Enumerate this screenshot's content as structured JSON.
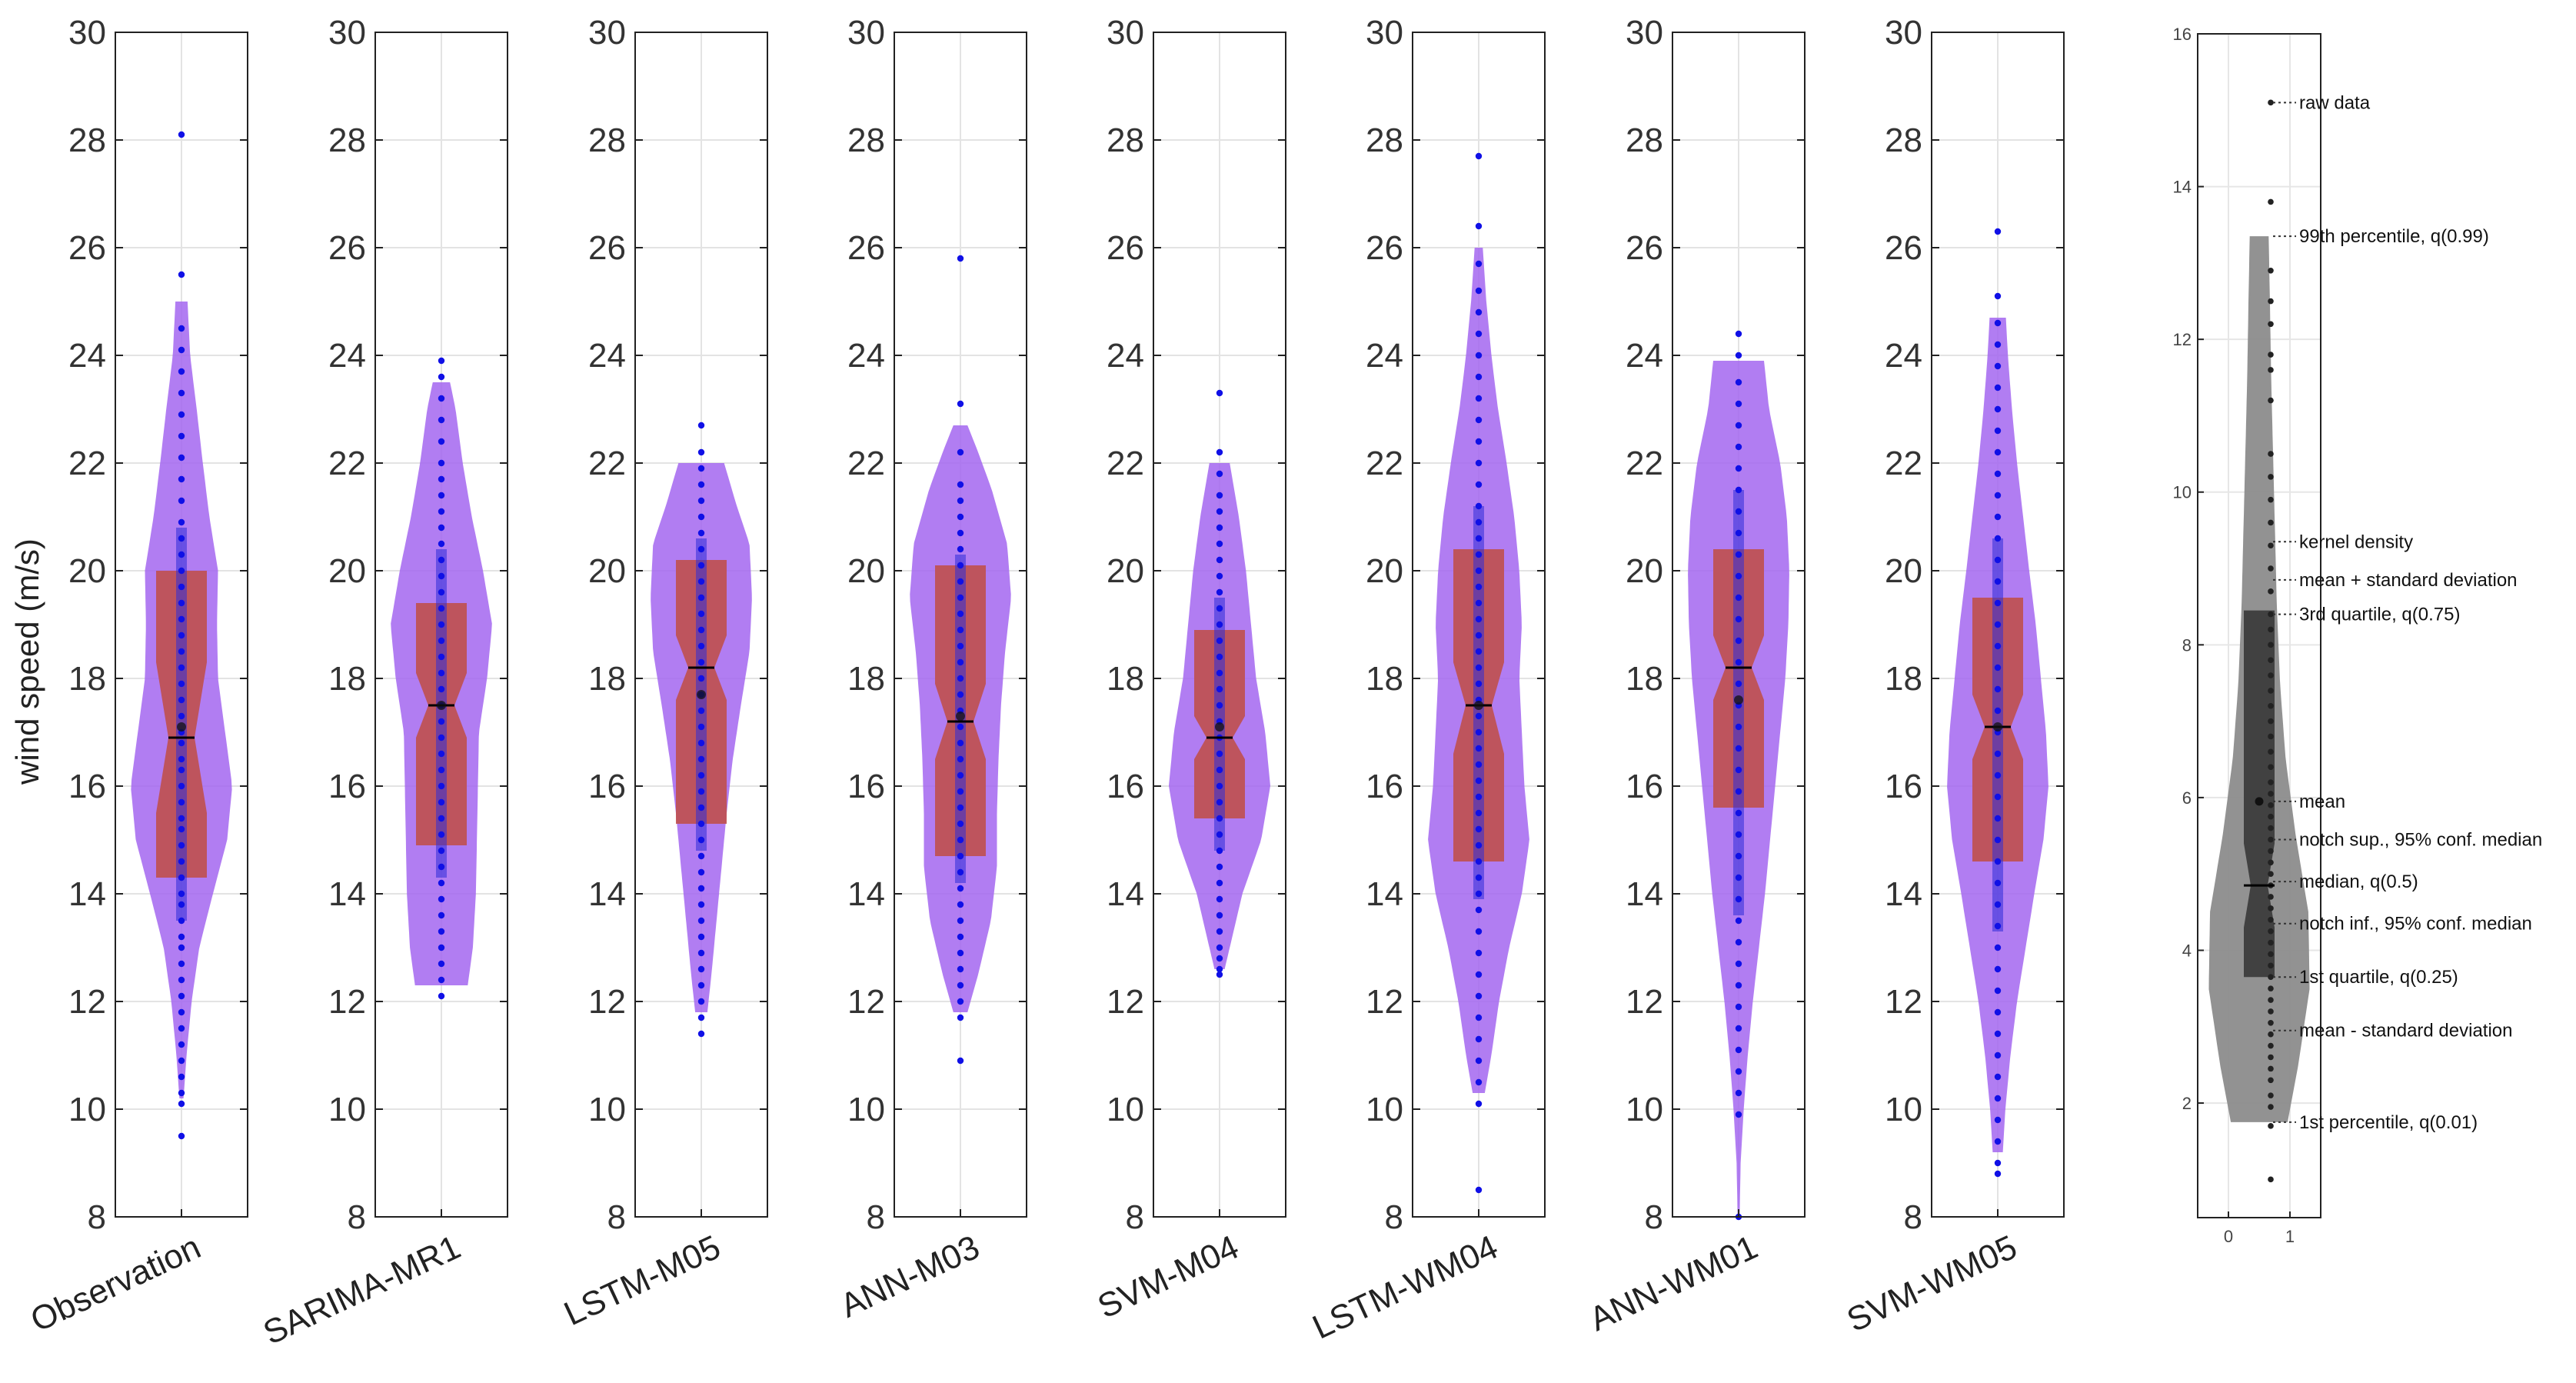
{
  "chart_data": {
    "type": "violin",
    "ylabel": "wind speed (m/s)",
    "ylim": [
      8,
      30
    ],
    "yticks": [
      8,
      10,
      12,
      14,
      16,
      18,
      20,
      22,
      24,
      26,
      28,
      30
    ],
    "grid": true,
    "colors": {
      "violin": "#a366f0",
      "box": "#c0504d",
      "points": "#1010e6",
      "median": "#000000"
    },
    "panels": [
      {
        "name": "Observation",
        "q1": 14.3,
        "median": 16.9,
        "q3": 20.0,
        "mean": 17.1,
        "notch_low": 15.5,
        "notch_high": 18.3,
        "p1": 10.2,
        "p99": 25.0,
        "whisker_low": 13.5,
        "whisker_high": 20.8,
        "points": [
          9.5,
          10.1,
          10.3,
          10.6,
          10.9,
          11.2,
          11.5,
          11.8,
          12.1,
          12.4,
          12.7,
          13.0,
          13.2,
          13.5,
          13.8,
          14.0,
          14.3,
          14.6,
          14.9,
          15.2,
          15.4,
          15.7,
          16.0,
          16.3,
          16.5,
          16.8,
          17.0,
          17.3,
          17.6,
          17.9,
          18.2,
          18.5,
          18.8,
          19.1,
          19.4,
          19.7,
          20.0,
          20.3,
          20.6,
          20.9,
          21.3,
          21.7,
          22.1,
          22.5,
          22.9,
          23.3,
          23.7,
          24.1,
          24.5,
          25.5,
          28.1
        ],
        "density": [
          [
            10.2,
            0.04
          ],
          [
            11,
            0.1
          ],
          [
            12,
            0.2
          ],
          [
            13,
            0.35
          ],
          [
            14,
            0.62
          ],
          [
            15,
            0.9
          ],
          [
            16,
            1.0
          ],
          [
            17,
            0.86
          ],
          [
            18,
            0.72
          ],
          [
            19,
            0.7
          ],
          [
            20,
            0.72
          ],
          [
            21,
            0.55
          ],
          [
            22,
            0.42
          ],
          [
            23,
            0.3
          ],
          [
            24,
            0.17
          ],
          [
            25,
            0.12
          ]
        ]
      },
      {
        "name": "SARIMA-MR1",
        "q1": 14.9,
        "median": 17.5,
        "q3": 19.4,
        "mean": 17.5,
        "notch_low": 16.9,
        "notch_high": 18.1,
        "p1": 12.3,
        "p99": 23.5,
        "whisker_low": 14.3,
        "whisker_high": 20.4,
        "points": [
          12.1,
          12.4,
          12.7,
          13.0,
          13.3,
          13.6,
          13.9,
          14.2,
          14.5,
          14.8,
          15.1,
          15.4,
          15.7,
          16.0,
          16.3,
          16.6,
          16.9,
          17.2,
          17.5,
          17.8,
          18.1,
          18.4,
          18.7,
          19.0,
          19.3,
          19.6,
          19.9,
          20.2,
          20.5,
          20.8,
          21.1,
          21.4,
          21.7,
          22.0,
          22.4,
          22.8,
          23.2,
          23.6,
          23.9
        ],
        "density": [
          [
            12.3,
            0.52
          ],
          [
            13,
            0.62
          ],
          [
            14,
            0.68
          ],
          [
            15,
            0.7
          ],
          [
            16,
            0.72
          ],
          [
            17,
            0.74
          ],
          [
            18,
            0.9
          ],
          [
            19,
            1.0
          ],
          [
            20,
            0.82
          ],
          [
            21,
            0.6
          ],
          [
            22,
            0.42
          ],
          [
            23,
            0.28
          ],
          [
            23.5,
            0.17
          ]
        ]
      },
      {
        "name": "LSTM-M05",
        "q1": 15.3,
        "median": 18.2,
        "q3": 20.2,
        "mean": 17.7,
        "notch_low": 17.6,
        "notch_high": 18.8,
        "p1": 11.8,
        "p99": 22.0,
        "whisker_low": 14.8,
        "whisker_high": 20.6,
        "points": [
          11.4,
          11.7,
          12.0,
          12.3,
          12.6,
          12.9,
          13.2,
          13.5,
          13.8,
          14.1,
          14.4,
          14.7,
          15.0,
          15.3,
          15.6,
          15.9,
          16.2,
          16.5,
          16.8,
          17.1,
          17.4,
          17.7,
          18.0,
          18.3,
          18.6,
          18.9,
          19.2,
          19.5,
          19.8,
          20.1,
          20.4,
          20.7,
          21.0,
          21.3,
          21.6,
          21.9,
          22.2,
          22.7
        ],
        "density": [
          [
            11.8,
            0.12
          ],
          [
            12.5,
            0.2
          ],
          [
            13.5,
            0.3
          ],
          [
            14.5,
            0.4
          ],
          [
            15.5,
            0.5
          ],
          [
            16.5,
            0.62
          ],
          [
            17.5,
            0.78
          ],
          [
            18.5,
            0.95
          ],
          [
            19.5,
            1.0
          ],
          [
            20.5,
            0.95
          ],
          [
            21.2,
            0.7
          ],
          [
            22,
            0.45
          ]
        ]
      },
      {
        "name": "ANN-M03",
        "q1": 14.7,
        "median": 17.2,
        "q3": 20.1,
        "mean": 17.3,
        "notch_low": 16.5,
        "notch_high": 17.9,
        "p1": 11.8,
        "p99": 22.7,
        "whisker_low": 14.2,
        "whisker_high": 20.3,
        "points": [
          10.9,
          11.7,
          12.0,
          12.3,
          12.6,
          12.9,
          13.2,
          13.5,
          13.8,
          14.1,
          14.4,
          14.7,
          15.0,
          15.3,
          15.6,
          15.9,
          16.2,
          16.5,
          16.8,
          17.1,
          17.4,
          17.7,
          18.0,
          18.3,
          18.6,
          18.9,
          19.2,
          19.5,
          19.8,
          20.1,
          20.4,
          20.7,
          21.0,
          21.3,
          21.6,
          22.2,
          23.1,
          25.8
        ],
        "density": [
          [
            11.8,
            0.14
          ],
          [
            12.5,
            0.35
          ],
          [
            13.5,
            0.6
          ],
          [
            14.5,
            0.72
          ],
          [
            15.5,
            0.72
          ],
          [
            16.5,
            0.75
          ],
          [
            17.5,
            0.8
          ],
          [
            18.5,
            0.88
          ],
          [
            19.5,
            1.0
          ],
          [
            20.5,
            0.92
          ],
          [
            21.5,
            0.62
          ],
          [
            22.2,
            0.35
          ],
          [
            22.7,
            0.14
          ]
        ]
      },
      {
        "name": "SVM-M04",
        "q1": 15.4,
        "median": 16.9,
        "q3": 18.9,
        "mean": 17.1,
        "notch_low": 16.5,
        "notch_high": 17.3,
        "p1": 12.6,
        "p99": 22.0,
        "whisker_low": 14.8,
        "whisker_high": 19.5,
        "points": [
          12.5,
          12.6,
          12.8,
          13.0,
          13.3,
          13.6,
          13.9,
          14.2,
          14.5,
          14.8,
          15.1,
          15.4,
          15.7,
          16.0,
          16.3,
          16.6,
          16.9,
          17.2,
          17.5,
          17.8,
          18.1,
          18.4,
          18.7,
          19.0,
          19.3,
          19.6,
          19.9,
          20.2,
          20.5,
          20.8,
          21.1,
          21.4,
          21.8,
          22.2,
          23.3
        ],
        "density": [
          [
            12.6,
            0.1
          ],
          [
            13,
            0.2
          ],
          [
            14,
            0.45
          ],
          [
            15,
            0.82
          ],
          [
            16,
            1.0
          ],
          [
            17,
            0.9
          ],
          [
            18,
            0.72
          ],
          [
            19,
            0.62
          ],
          [
            20,
            0.52
          ],
          [
            21,
            0.38
          ],
          [
            22,
            0.2
          ]
        ]
      },
      {
        "name": "LSTM-WM04",
        "q1": 14.6,
        "median": 17.5,
        "q3": 20.4,
        "mean": 17.5,
        "notch_low": 16.6,
        "notch_high": 18.3,
        "p1": 10.3,
        "p99": 26.0,
        "whisker_low": 13.9,
        "whisker_high": 21.2,
        "points": [
          8.5,
          10.1,
          10.5,
          10.9,
          11.3,
          11.7,
          12.1,
          12.5,
          12.9,
          13.3,
          13.7,
          14.0,
          14.3,
          14.6,
          14.9,
          15.2,
          15.5,
          15.8,
          16.1,
          16.4,
          16.7,
          17.0,
          17.3,
          17.6,
          17.9,
          18.2,
          18.5,
          18.8,
          19.1,
          19.4,
          19.7,
          20.0,
          20.3,
          20.6,
          20.9,
          21.2,
          21.6,
          22.0,
          22.4,
          22.8,
          23.2,
          23.6,
          24.0,
          24.4,
          24.8,
          25.2,
          25.7,
          26.4,
          27.7
        ],
        "density": [
          [
            10.3,
            0.12
          ],
          [
            11,
            0.25
          ],
          [
            12,
            0.4
          ],
          [
            13,
            0.6
          ],
          [
            14,
            0.85
          ],
          [
            15,
            1.0
          ],
          [
            16,
            0.9
          ],
          [
            17,
            0.85
          ],
          [
            18,
            0.8
          ],
          [
            19,
            0.85
          ],
          [
            20,
            0.8
          ],
          [
            21,
            0.7
          ],
          [
            22,
            0.55
          ],
          [
            23,
            0.38
          ],
          [
            24,
            0.25
          ],
          [
            25,
            0.15
          ],
          [
            26,
            0.08
          ]
        ]
      },
      {
        "name": "ANN-WM01",
        "q1": 15.6,
        "median": 18.2,
        "q3": 20.4,
        "mean": 17.6,
        "notch_low": 17.6,
        "notch_high": 18.8,
        "p1": 8.0,
        "p99": 23.9,
        "whisker_low": 13.6,
        "whisker_high": 21.5,
        "points": [
          8.0,
          9.9,
          10.3,
          10.7,
          11.1,
          11.5,
          11.9,
          12.3,
          12.7,
          13.1,
          13.5,
          13.9,
          14.3,
          14.7,
          15.1,
          15.5,
          15.9,
          16.3,
          16.7,
          17.1,
          17.5,
          17.9,
          18.3,
          18.7,
          19.1,
          19.5,
          19.9,
          20.3,
          20.7,
          21.1,
          21.5,
          21.9,
          22.3,
          22.7,
          23.1,
          23.5,
          24.0,
          24.4
        ],
        "density": [
          [
            8.0,
            0.02
          ],
          [
            9,
            0.04
          ],
          [
            10,
            0.1
          ],
          [
            11,
            0.18
          ],
          [
            12,
            0.28
          ],
          [
            13,
            0.4
          ],
          [
            14,
            0.52
          ],
          [
            15,
            0.62
          ],
          [
            16,
            0.72
          ],
          [
            17,
            0.82
          ],
          [
            18,
            0.92
          ],
          [
            19,
            0.98
          ],
          [
            20,
            1.0
          ],
          [
            21,
            0.95
          ],
          [
            22,
            0.82
          ],
          [
            23,
            0.6
          ],
          [
            23.9,
            0.5
          ]
        ]
      },
      {
        "name": "SVM-WM05",
        "q1": 14.6,
        "median": 17.1,
        "q3": 19.5,
        "mean": 17.1,
        "notch_low": 16.5,
        "notch_high": 17.7,
        "p1": 9.2,
        "p99": 24.7,
        "whisker_low": 13.3,
        "whisker_high": 20.6,
        "points": [
          8.8,
          9.0,
          9.4,
          9.8,
          10.2,
          10.6,
          11.0,
          11.4,
          11.8,
          12.2,
          12.6,
          13.0,
          13.4,
          13.8,
          14.2,
          14.6,
          15.0,
          15.4,
          15.8,
          16.2,
          16.6,
          17.0,
          17.4,
          17.8,
          18.2,
          18.6,
          19.0,
          19.4,
          19.8,
          20.2,
          20.6,
          21.0,
          21.4,
          21.8,
          22.2,
          22.6,
          23.0,
          23.4,
          23.8,
          24.2,
          24.6,
          25.1,
          26.3
        ],
        "density": [
          [
            9.2,
            0.1
          ],
          [
            10,
            0.15
          ],
          [
            11,
            0.25
          ],
          [
            12,
            0.38
          ],
          [
            13,
            0.55
          ],
          [
            14,
            0.72
          ],
          [
            15,
            0.9
          ],
          [
            16,
            1.0
          ],
          [
            17,
            0.95
          ],
          [
            18,
            0.85
          ],
          [
            19,
            0.75
          ],
          [
            20,
            0.62
          ],
          [
            21,
            0.5
          ],
          [
            22,
            0.38
          ],
          [
            23,
            0.28
          ],
          [
            24,
            0.2
          ],
          [
            24.7,
            0.16
          ]
        ]
      }
    ],
    "legend_panel": {
      "ylim": [
        0.5,
        16
      ],
      "yticks": [
        2,
        4,
        6,
        8,
        10,
        12,
        14,
        16
      ],
      "xticks": [
        0,
        1
      ],
      "xlim": [
        -0.5,
        1.5
      ],
      "colors": {
        "violin": "#8c8c8c",
        "box": "#3d3d3d",
        "points": "#222222"
      },
      "stats": {
        "q1": 3.65,
        "median": 4.85,
        "q3": 8.45,
        "mean": 5.95,
        "notch_low": 4.3,
        "notch_high": 5.4,
        "p1": 1.75,
        "p99": 13.35,
        "std_low": 2.95,
        "std_high": 8.85
      },
      "points": [
        1.0,
        1.7,
        1.95,
        2.1,
        2.3,
        2.45,
        2.6,
        2.75,
        2.9,
        3.05,
        3.2,
        3.35,
        3.5,
        3.65,
        3.8,
        3.95,
        4.1,
        4.25,
        4.4,
        4.55,
        4.7,
        4.85,
        5.0,
        5.15,
        5.3,
        5.45,
        5.6,
        5.75,
        5.9,
        6.05,
        6.2,
        6.4,
        6.6,
        6.8,
        7.0,
        7.2,
        7.4,
        7.6,
        7.8,
        8.0,
        8.2,
        8.4,
        8.7,
        9.0,
        9.3,
        9.6,
        9.9,
        10.2,
        10.5,
        11.2,
        11.6,
        11.8,
        12.2,
        12.5,
        12.9,
        13.8,
        15.1
      ],
      "density": [
        [
          1.75,
          0.45
        ],
        [
          2.5,
          0.62
        ],
        [
          3.5,
          0.8
        ],
        [
          4.5,
          0.78
        ],
        [
          5.5,
          0.58
        ],
        [
          6.5,
          0.42
        ],
        [
          7.5,
          0.33
        ],
        [
          8.5,
          0.28
        ],
        [
          9.5,
          0.25
        ],
        [
          10.5,
          0.22
        ],
        [
          11.5,
          0.19
        ],
        [
          12.5,
          0.17
        ],
        [
          13.35,
          0.15
        ]
      ],
      "annotations": [
        {
          "label": "raw data",
          "y": 15.1
        },
        {
          "label": "99th percentile, q(0.99)",
          "y": 13.35
        },
        {
          "label": "kernel density",
          "y": 9.35
        },
        {
          "label": "mean + standard deviation",
          "y": 8.85
        },
        {
          "label": "3rd quartile, q(0.75)",
          "y": 8.4
        },
        {
          "label": "mean",
          "y": 5.95
        },
        {
          "label": "notch sup., 95% conf. median",
          "y": 5.45
        },
        {
          "label": "median, q(0.5)",
          "y": 4.9
        },
        {
          "label": "notch inf., 95% conf. median",
          "y": 4.35
        },
        {
          "label": "1st quartile, q(0.25)",
          "y": 3.65
        },
        {
          "label": "mean - standard deviation",
          "y": 2.95
        },
        {
          "label": "1st percentile, q(0.01)",
          "y": 1.75
        }
      ]
    }
  }
}
